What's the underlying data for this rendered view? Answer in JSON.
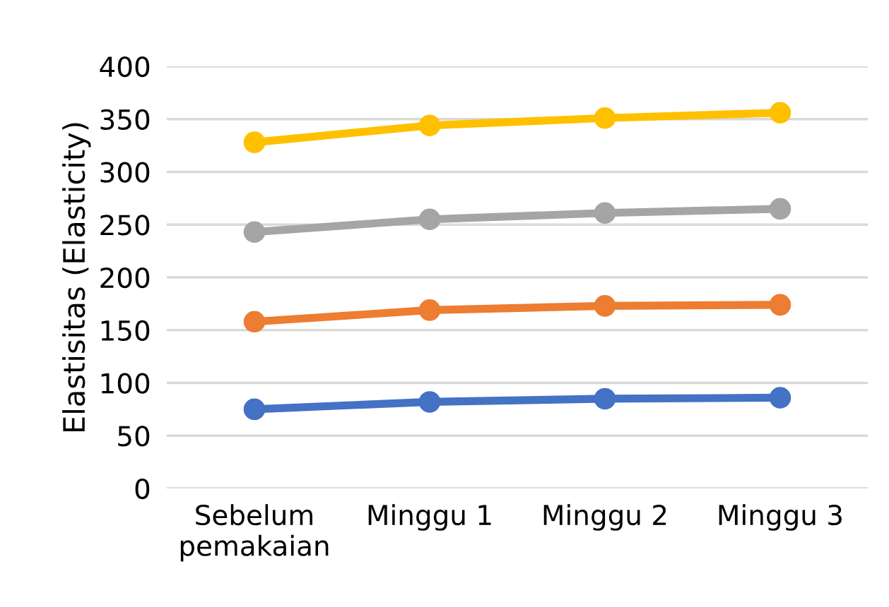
{
  "chart_data": {
    "type": "line",
    "ylabel": "Elastisitas (Elasticity)",
    "categories": [
      "Sebelum\npemakaian",
      "Minggu 1",
      "Minggu 2",
      "Minggu 3"
    ],
    "series": [
      {
        "color": "#4472c4",
        "values": [
          75,
          82,
          85,
          86
        ]
      },
      {
        "color": "#ed7d31",
        "values": [
          158,
          169,
          173,
          174
        ]
      },
      {
        "color": "#a5a5a5",
        "values": [
          243,
          255,
          261,
          265
        ]
      },
      {
        "color": "#ffc000",
        "values": [
          328,
          344,
          351,
          356
        ]
      }
    ],
    "ylim": [
      0,
      400
    ],
    "yticks": [
      0,
      50,
      100,
      150,
      200,
      250,
      300,
      350,
      400
    ],
    "grid": "y",
    "marker": "circle",
    "line_style": "solid"
  }
}
